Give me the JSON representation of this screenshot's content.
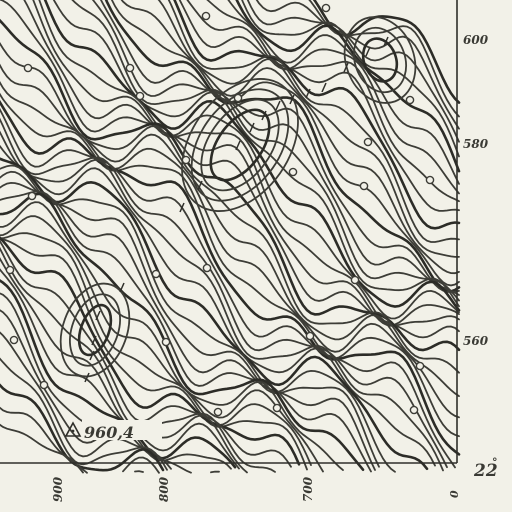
{
  "map": {
    "background_color": "#f2f1e8",
    "ink_color": "#3d3d37",
    "frame_labels_right": [
      "600",
      "580",
      "560"
    ],
    "frame_labels_bottom": [
      "900",
      "800",
      "700"
    ],
    "corner_label": "22",
    "corner_degree": "°",
    "corner_bottom_label": "0",
    "spot_height": "960,4",
    "spot_height_symbol": "triangle-icon"
  }
}
